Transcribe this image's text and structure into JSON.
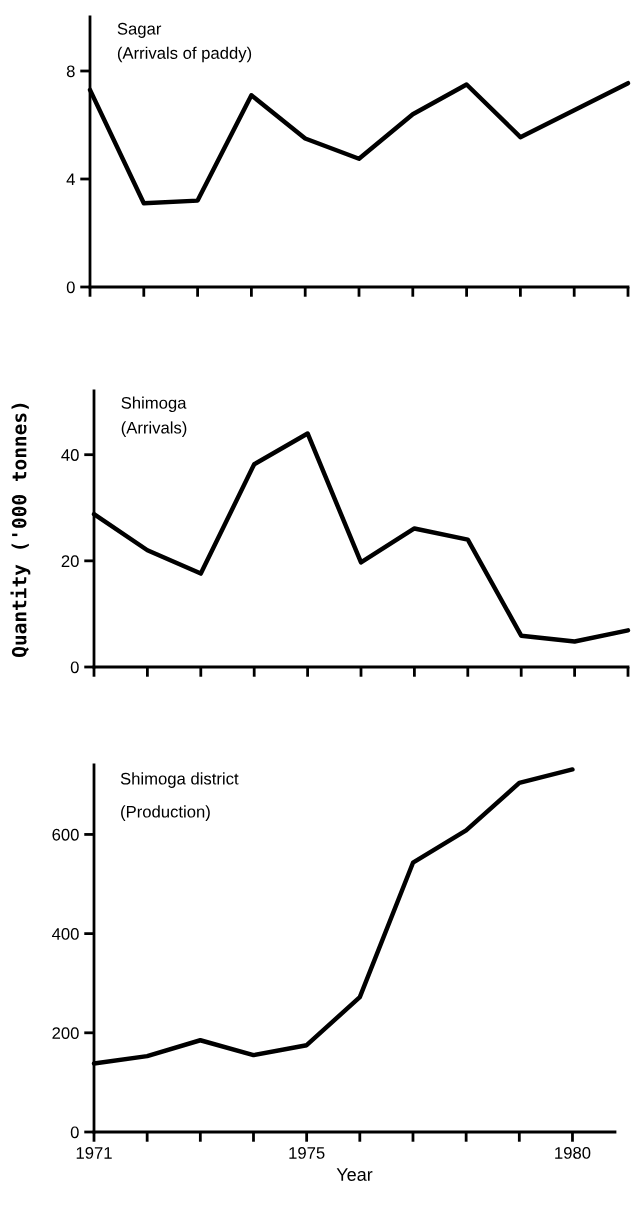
{
  "chart_data": [
    {
      "type": "line",
      "title": "Sagar",
      "subtitle": "(Arrivals of paddy)",
      "categories": [
        null,
        null,
        null,
        null,
        null,
        null,
        null,
        null,
        null,
        null,
        null
      ],
      "series": [
        {
          "color": "#000000",
          "values": [
            7.3,
            3.1,
            3.2,
            7.1,
            5.5,
            4.75,
            6.4,
            7.5,
            5.55,
            6.55,
            7.55
          ]
        }
      ],
      "ylim": [
        0,
        10
      ],
      "yticks": [
        0,
        4,
        8
      ],
      "grid": false,
      "legend": false,
      "marker": "none",
      "line_style": "solid"
    },
    {
      "type": "line",
      "title": "Shimoga",
      "subtitle": "(Arrivals)",
      "ylabel": "Quantity ('000 tonnes)",
      "categories": [
        null,
        null,
        null,
        null,
        null,
        null,
        null,
        null,
        null,
        null,
        null
      ],
      "series": [
        {
          "color": "#000000",
          "values": [
            28.8,
            22.0,
            17.6,
            38.2,
            44,
            19.7,
            26.1,
            24,
            5.9,
            4.8,
            6.9
          ]
        }
      ],
      "ylim": [
        0,
        52
      ],
      "yticks": [
        0,
        20,
        40
      ],
      "grid": false,
      "legend": false,
      "marker": "none",
      "line_style": "solid"
    },
    {
      "type": "line",
      "title": "Shimoga district",
      "subtitle": "(Production)",
      "xlabel": "Year",
      "x": [
        1971,
        1972,
        1973,
        1974,
        1975,
        1976,
        1977,
        1978,
        1979,
        1980
      ],
      "series": [
        {
          "color": "#000000",
          "values": [
            138,
            153,
            185,
            155,
            175,
            272,
            543,
            608,
            704,
            731
          ]
        }
      ],
      "xlim": [
        1971,
        1980.8
      ],
      "xticks": [
        1971,
        {
          "value": 1972,
          "label": null
        },
        {
          "value": 1973,
          "label": null
        },
        {
          "value": 1974,
          "label": null
        },
        1975,
        {
          "value": 1976,
          "label": null
        },
        {
          "value": 1977,
          "label": null
        },
        {
          "value": 1978,
          "label": null
        },
        {
          "value": 1979,
          "label": null
        },
        1980
      ],
      "ylim": [
        0,
        740
      ],
      "yticks": [
        0,
        200,
        400,
        600
      ],
      "grid": false,
      "legend": false,
      "marker": "none",
      "line_style": "solid"
    }
  ]
}
